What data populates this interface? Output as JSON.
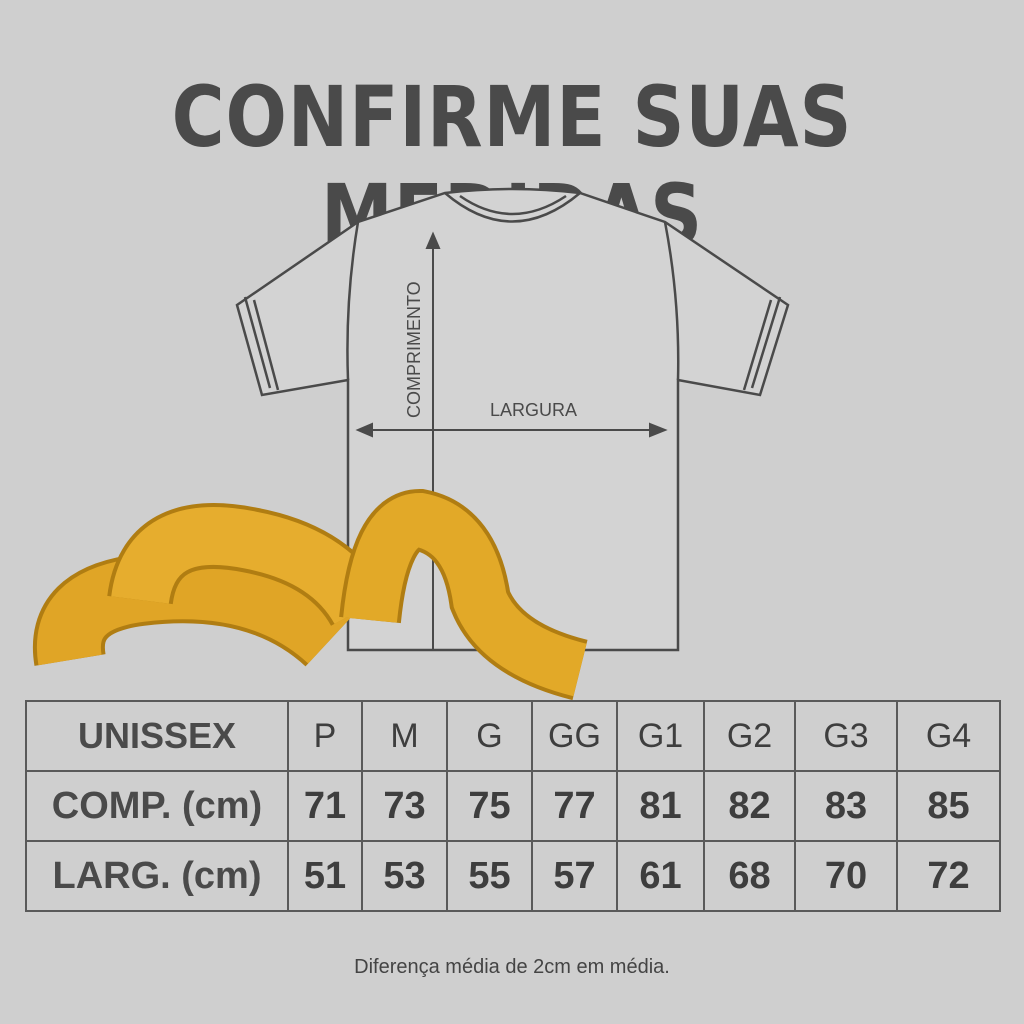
{
  "title": "CONFIRME SUAS MEDIDAS",
  "diagram": {
    "length_label": "COMPRIMENTO",
    "width_label": "LARGURA"
  },
  "table": {
    "header_label": "UNISSEX",
    "sizes": [
      "P",
      "M",
      "G",
      "GG",
      "G1",
      "G2",
      "G3",
      "G4"
    ],
    "rows": [
      {
        "label": "COMP. (cm)",
        "values": [
          "71",
          "73",
          "75",
          "77",
          "81",
          "82",
          "83",
          "85"
        ]
      },
      {
        "label": "LARG. (cm)",
        "values": [
          "51",
          "53",
          "55",
          "57",
          "61",
          "68",
          "70",
          "72"
        ]
      }
    ]
  },
  "note": "Diferença média de 2cm em média.",
  "colors": {
    "background": "#cfcfcf",
    "text": "#444444",
    "tape": "#e0a526"
  }
}
